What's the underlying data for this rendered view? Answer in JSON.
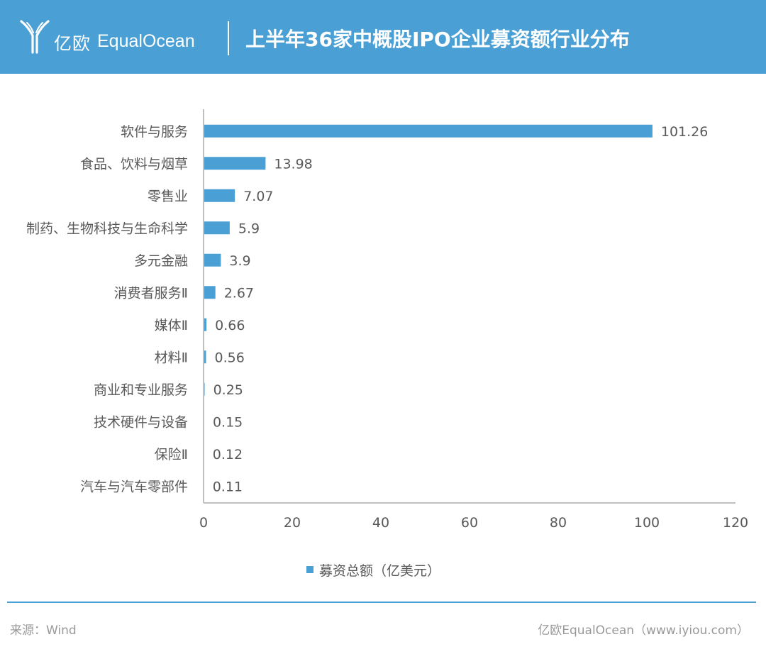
{
  "header": {
    "logo_cn": "亿欧",
    "logo_en": "EqualOcean",
    "title": "上半年36家中概股IPO企业募资额行业分布"
  },
  "colors": {
    "header_bg": "#4a9fd4",
    "bar": "#4a9fd4",
    "axis": "#bfbfbf"
  },
  "icons": {
    "logo": "equalocean-logo-icon"
  },
  "chart_data": {
    "type": "bar",
    "orientation": "horizontal",
    "categories": [
      "软件与服务",
      "食品、饮料与烟草",
      "零售业",
      "制药、生物科技与生命科学",
      "多元金融",
      "消费者服务Ⅱ",
      "媒体Ⅱ",
      "材料Ⅱ",
      "商业和专业服务",
      "技术硬件与设备",
      "保险Ⅱ",
      "汽车与汽车零部件"
    ],
    "series": [
      {
        "name": "募资总额（亿美元）",
        "values": [
          101.26,
          13.98,
          7.07,
          5.9,
          3.9,
          2.67,
          0.66,
          0.56,
          0.25,
          0.15,
          0.12,
          0.11
        ]
      }
    ],
    "value_labels": [
      "101.26",
      "13.98",
      "7.07",
      "5.9",
      "3.9",
      "2.67",
      "0.66",
      "0.56",
      "0.25",
      "0.15",
      "0.12",
      "0.11"
    ],
    "xlim": [
      0,
      120
    ],
    "xticks": [
      0,
      20,
      40,
      60,
      80,
      100,
      120
    ],
    "grid": false,
    "legend_position": "bottom-center"
  },
  "footer": {
    "source": "来源：Wind",
    "credit": "亿欧EqualOcean（www.iyiou.com）"
  }
}
